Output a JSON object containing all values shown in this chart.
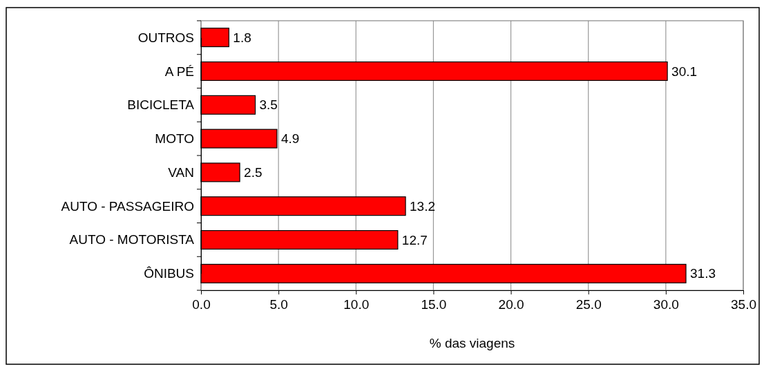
{
  "chart_data": {
    "type": "bar",
    "orientation": "horizontal",
    "xlabel": "% das viagens",
    "categories": [
      "OUTROS",
      "A PÉ",
      "BICICLETA",
      "MOTO",
      "VAN",
      "AUTO - PASSAGEIRO",
      "AUTO - MOTORISTA",
      "ÔNIBUS"
    ],
    "values": [
      1.8,
      30.1,
      3.5,
      4.9,
      2.5,
      13.2,
      12.7,
      31.3
    ],
    "color": "#ff0000",
    "xlim": [
      0,
      35
    ],
    "xticks": [
      {
        "value": 0,
        "label": "0.0"
      },
      {
        "value": 5,
        "label": "5.0"
      },
      {
        "value": 10,
        "label": "10.0"
      },
      {
        "value": 15,
        "label": "15.0"
      },
      {
        "value": 20,
        "label": "20.0"
      },
      {
        "value": 25,
        "label": "25.0"
      },
      {
        "value": 30,
        "label": "30.0"
      },
      {
        "value": 35,
        "label": "35.0"
      }
    ],
    "grid": "x",
    "data_labels": true
  }
}
